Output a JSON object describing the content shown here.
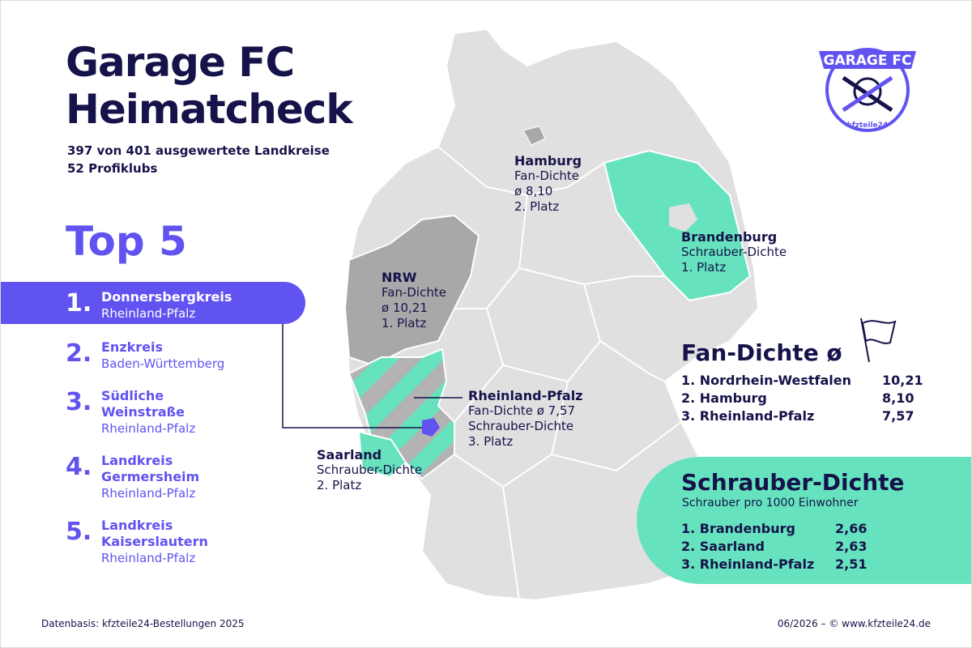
{
  "header": {
    "title_line1": "Garage FC",
    "title_line2": "Heimatcheck",
    "subtitle_line1": "397 von 401 ausgewertete Landkreise",
    "subtitle_line2": "52 Profiklubs"
  },
  "top5": {
    "title": "Top 5",
    "items": [
      {
        "rank": "1.",
        "name": [
          "Donnersbergkreis"
        ],
        "state": "Rheinland-Pfalz"
      },
      {
        "rank": "2.",
        "name": [
          "Enzkreis"
        ],
        "state": "Baden-Württemberg"
      },
      {
        "rank": "3.",
        "name": [
          "Südliche",
          "Weinstraße"
        ],
        "state": "Rheinland-Pfalz"
      },
      {
        "rank": "4.",
        "name": [
          "Landkreis",
          "Germersheim"
        ],
        "state": "Rheinland-Pfalz"
      },
      {
        "rank": "5.",
        "name": [
          "Landkreis",
          "Kaiserslautern"
        ],
        "state": "Rheinland-Pfalz"
      }
    ]
  },
  "map_labels": [
    {
      "name": "Hamburg",
      "lines": [
        "Fan-Dichte",
        "ø 8,10",
        "2. Platz"
      ]
    },
    {
      "name": "Brandenburg",
      "lines": [
        "Schrauber-Dichte",
        "1. Platz"
      ]
    },
    {
      "name": "NRW",
      "lines": [
        "Fan-Dichte",
        "ø 10,21",
        "1. Platz"
      ]
    },
    {
      "name": "Rheinland-Pfalz",
      "lines": [
        "Fan-Dichte ø 7,57",
        "Schrauber-Dichte",
        "3. Platz"
      ]
    },
    {
      "name": "Saarland",
      "lines": [
        "Schrauber-Dichte",
        "2. Platz"
      ]
    }
  ],
  "fan_density": {
    "title": "Fan-Dichte ø",
    "rows": [
      [
        "1. Nordrhein-Westfalen",
        "10,21"
      ],
      [
        "2. Hamburg",
        "8,10"
      ],
      [
        "3. Rheinland-Pfalz",
        "7,57"
      ]
    ]
  },
  "screwer_density": {
    "title": "Schrauber-Dichte",
    "subtitle": "Schrauber pro 1000 Einwohner",
    "rows": [
      [
        "1. Brandenburg",
        "2,66"
      ],
      [
        "2. Saarland",
        "2,63"
      ],
      [
        "3. Rheinland-Pfalz",
        "2,51"
      ]
    ]
  },
  "logo": {
    "text": "GARAGE FC",
    "subtext": "kfzteile24"
  },
  "footer": {
    "source": "Datenbasis: kfzteile24-Bestellungen 2025",
    "copyright": "06/2026 – © www.kfzteile24.de"
  }
}
